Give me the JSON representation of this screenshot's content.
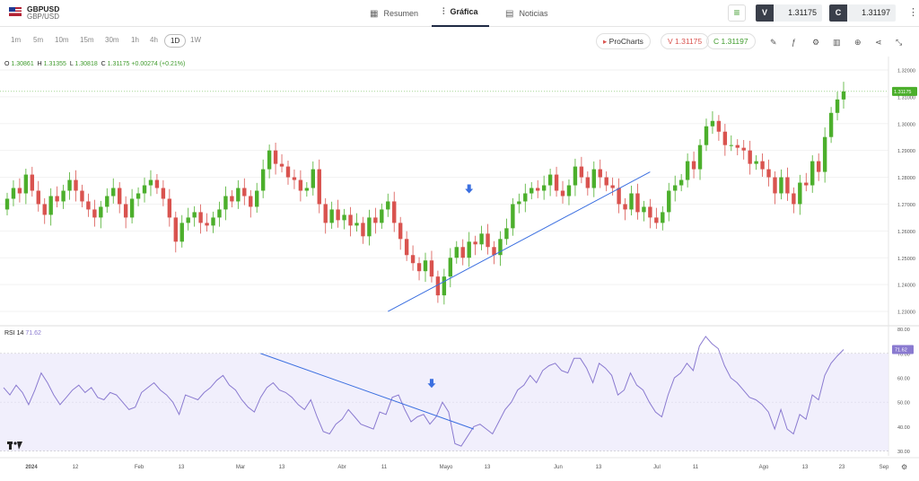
{
  "header": {
    "symbol": "GBPUSD",
    "symbol_sub": "GBP/USD",
    "tabs": [
      {
        "label": "Resumen",
        "icon": "grid-icon",
        "active": false
      },
      {
        "label": "Gráfica",
        "icon": "candles-icon",
        "active": true
      },
      {
        "label": "Noticias",
        "icon": "news-icon",
        "active": false
      }
    ],
    "sell_label": "V",
    "sell_price": "1.31175",
    "buy_label": "C",
    "buy_price": "1.31197"
  },
  "toolbar": {
    "timeframes": [
      "1m",
      "5m",
      "10m",
      "15m",
      "30m",
      "1h",
      "4h",
      "1D",
      "1W"
    ],
    "active_timeframe": "1D",
    "prochart_label": "ProCharts",
    "sell_pill": "V 1.31175",
    "buy_pill": "C 1.31197",
    "tools": [
      "pencil-icon",
      "indicators-icon",
      "settings-icon",
      "chart-type-icon",
      "add-icon",
      "share-icon",
      "expand-icon"
    ]
  },
  "legend": {
    "o_label": "O",
    "o": "1.30861",
    "h_label": "H",
    "h": "1.31355",
    "l_label": "L",
    "l": "1.30818",
    "c_label": "C",
    "c": "1.31175",
    "change": "+0.00274 (+0.21%)"
  },
  "rsi_legend": {
    "name": "RSI",
    "period": "14",
    "value": "71.62"
  },
  "colors": {
    "up": "#4caf2c",
    "down": "#d9534f",
    "rsi": "#8a7ad0",
    "trend": "#3b6fe0",
    "arrow": "#3b6fe0"
  },
  "chart_data": [
    {
      "type": "candlestick",
      "title": "",
      "ylim": [
        1.225,
        1.325
      ],
      "yticks": [
        "1.32000",
        "1.31000",
        "1.30000",
        "1.29000",
        "1.28000",
        "1.27000",
        "1.26000",
        "1.25000",
        "1.24000",
        "1.23000"
      ],
      "last_price_label": "1.31175",
      "xticks": [
        "2024",
        "12",
        "Feb",
        "13",
        "Mar",
        "13",
        "Abr",
        "11",
        "Mayo",
        "13",
        "Jun",
        "13",
        "Jul",
        "11",
        "Ago",
        "13",
        "23",
        "Sep"
      ],
      "close": [
        1.272,
        1.276,
        1.274,
        1.281,
        1.275,
        1.27,
        1.266,
        1.273,
        1.271,
        1.275,
        1.279,
        1.275,
        1.271,
        1.268,
        1.265,
        1.269,
        1.273,
        1.276,
        1.27,
        1.265,
        1.272,
        1.274,
        1.277,
        1.279,
        1.276,
        1.272,
        1.265,
        1.256,
        1.263,
        1.265,
        1.267,
        1.263,
        1.262,
        1.265,
        1.268,
        1.273,
        1.271,
        1.276,
        1.273,
        1.269,
        1.275,
        1.283,
        1.29,
        1.285,
        1.284,
        1.28,
        1.279,
        1.275,
        1.276,
        1.283,
        1.27,
        1.263,
        1.268,
        1.264,
        1.266,
        1.262,
        1.263,
        1.258,
        1.265,
        1.263,
        1.268,
        1.271,
        1.263,
        1.257,
        1.251,
        1.248,
        1.245,
        1.249,
        1.243,
        1.236,
        1.243,
        1.25,
        1.254,
        1.25,
        1.256,
        1.255,
        1.259,
        1.254,
        1.251,
        1.257,
        1.261,
        1.27,
        1.271,
        1.274,
        1.276,
        1.275,
        1.277,
        1.281,
        1.275,
        1.273,
        1.277,
        1.284,
        1.28,
        1.276,
        1.283,
        1.28,
        1.277,
        1.276,
        1.27,
        1.268,
        1.274,
        1.267,
        1.269,
        1.265,
        1.263,
        1.267,
        1.275,
        1.277,
        1.279,
        1.286,
        1.283,
        1.292,
        1.299,
        1.301,
        1.297,
        1.292,
        1.292,
        1.291,
        1.29,
        1.285,
        1.286,
        1.283,
        1.28,
        1.274,
        1.28,
        1.274,
        1.27,
        1.278,
        1.277,
        1.286,
        1.282,
        1.295,
        1.304,
        1.309,
        1.312
      ]
    },
    {
      "type": "line",
      "title": "",
      "ylim": [
        28,
        81
      ],
      "yticks": [
        "80.00",
        "70.00",
        "60.00",
        "50.00",
        "40.00",
        "30.00"
      ],
      "last_value_label": "71.62",
      "overbought": 70,
      "oversold": 30,
      "values": [
        56,
        53,
        57,
        54,
        49,
        55,
        62,
        58,
        53,
        49,
        52,
        55,
        57,
        54,
        56,
        52,
        51,
        54,
        53,
        50,
        47,
        48,
        54,
        56,
        58,
        55,
        53,
        50,
        45,
        53,
        52,
        51,
        54,
        56,
        59,
        61,
        57,
        55,
        51,
        48,
        46,
        52,
        56,
        58,
        55,
        54,
        52,
        49,
        47,
        51,
        44,
        38,
        37,
        41,
        43,
        47,
        44,
        41,
        40,
        39,
        46,
        45,
        52,
        53,
        47,
        42,
        44,
        45,
        41,
        44,
        50,
        46,
        33,
        32,
        36,
        40,
        41,
        39,
        37,
        42,
        47,
        50,
        55,
        57,
        61,
        58,
        63,
        65,
        66,
        63,
        62,
        68,
        68,
        64,
        58,
        66,
        64,
        61,
        53,
        55,
        62,
        57,
        55,
        50,
        46,
        44,
        53,
        60,
        62,
        66,
        63,
        73,
        77,
        74,
        72,
        65,
        60,
        58,
        55,
        52,
        51,
        49,
        46,
        39,
        47,
        39,
        37,
        45,
        43,
        53,
        51,
        61,
        66,
        69,
        71.62
      ]
    }
  ],
  "annotations": {
    "price_trendline": [
      [
        61,
        1.23
      ],
      [
        103,
        1.282
      ]
    ],
    "rsi_trendline": [
      [
        41,
        70
      ],
      [
        75,
        39
      ]
    ],
    "price_arrow": [
      74,
      1.275
    ],
    "rsi_arrow": [
      68,
      57
    ]
  }
}
